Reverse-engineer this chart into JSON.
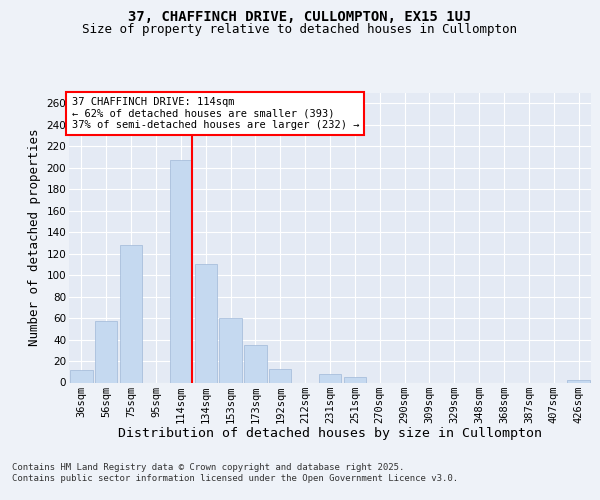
{
  "title": "37, CHAFFINCH DRIVE, CULLOMPTON, EX15 1UJ",
  "subtitle": "Size of property relative to detached houses in Cullompton",
  "xlabel": "Distribution of detached houses by size in Cullompton",
  "ylabel": "Number of detached properties",
  "categories": [
    "36sqm",
    "56sqm",
    "75sqm",
    "95sqm",
    "114sqm",
    "134sqm",
    "153sqm",
    "173sqm",
    "192sqm",
    "212sqm",
    "231sqm",
    "251sqm",
    "270sqm",
    "290sqm",
    "309sqm",
    "329sqm",
    "348sqm",
    "368sqm",
    "387sqm",
    "407sqm",
    "426sqm"
  ],
  "values": [
    12,
    57,
    128,
    0,
    207,
    110,
    60,
    35,
    13,
    0,
    8,
    5,
    0,
    0,
    0,
    0,
    0,
    0,
    0,
    0,
    2
  ],
  "bar_color": "#c5d9f0",
  "bar_edgecolor": "#a0b8d8",
  "red_line_index": 4,
  "ylim": [
    0,
    270
  ],
  "yticks": [
    0,
    20,
    40,
    60,
    80,
    100,
    120,
    140,
    160,
    180,
    200,
    220,
    240,
    260
  ],
  "annotation_lines": [
    "37 CHAFFINCH DRIVE: 114sqm",
    "← 62% of detached houses are smaller (393)",
    "37% of semi-detached houses are larger (232) →"
  ],
  "footer_lines": [
    "Contains HM Land Registry data © Crown copyright and database right 2025.",
    "Contains public sector information licensed under the Open Government Licence v3.0."
  ],
  "background_color": "#eef2f8",
  "plot_background": "#e4eaf4",
  "title_fontsize": 10,
  "subtitle_fontsize": 9,
  "axis_label_fontsize": 9,
  "tick_fontsize": 7.5,
  "annotation_fontsize": 7.5,
  "footer_fontsize": 6.5
}
